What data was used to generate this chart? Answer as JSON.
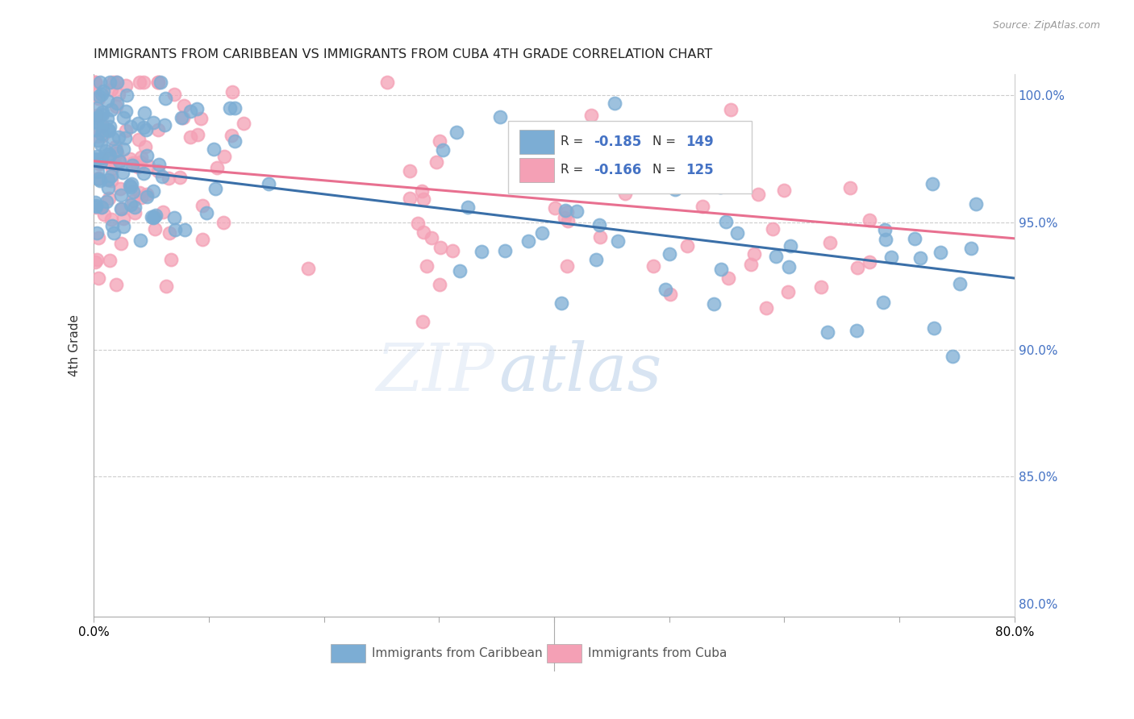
{
  "title": "IMMIGRANTS FROM CARIBBEAN VS IMMIGRANTS FROM CUBA 4TH GRADE CORRELATION CHART",
  "source": "Source: ZipAtlas.com",
  "ylabel": "4th Grade",
  "xlim": [
    0.0,
    0.8
  ],
  "ylim": [
    0.795,
    1.008
  ],
  "blue_R": -0.185,
  "blue_N": 149,
  "pink_R": -0.166,
  "pink_N": 125,
  "blue_color": "#7cadd4",
  "pink_color": "#f4a0b5",
  "blue_line_color": "#3a6fa8",
  "pink_line_color": "#e87090",
  "blue_label": "Immigrants from Caribbean",
  "pink_label": "Immigrants from Cuba",
  "watermark_zip": "ZIP",
  "watermark_atlas": "atlas",
  "right_tick_color": "#4472c4"
}
